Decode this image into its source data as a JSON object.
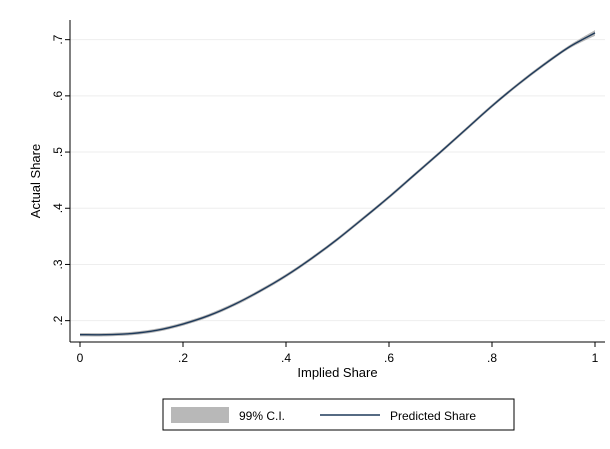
{
  "chart_data": {
    "type": "line",
    "title": "",
    "xlabel": "Implied Share",
    "ylabel": "Actual Share",
    "xlim": [
      0,
      1
    ],
    "ylim": [
      0.162,
      0.735
    ],
    "x_ticks": [
      0,
      0.2,
      0.4,
      0.6,
      0.8,
      1
    ],
    "x_tick_labels": [
      "0",
      ".2",
      ".4",
      ".6",
      ".8",
      "1"
    ],
    "y_ticks": [
      0.2,
      0.3,
      0.4,
      0.5,
      0.6,
      0.7
    ],
    "y_tick_labels": [
      ".2",
      ".3",
      ".4",
      ".5",
      ".6",
      ".7"
    ],
    "grid": "horizontal",
    "legend_position": "bottom",
    "series": [
      {
        "name": "Predicted Share",
        "role": "line",
        "color": "#1f3a5a",
        "x": [
          0,
          0.05,
          0.1,
          0.15,
          0.2,
          0.25,
          0.3,
          0.35,
          0.4,
          0.45,
          0.5,
          0.55,
          0.6,
          0.65,
          0.7,
          0.75,
          0.8,
          0.85,
          0.9,
          0.95,
          1.0
        ],
        "y": [
          0.175,
          0.175,
          0.177,
          0.183,
          0.194,
          0.209,
          0.229,
          0.253,
          0.28,
          0.311,
          0.345,
          0.382,
          0.42,
          0.46,
          0.5,
          0.541,
          0.582,
          0.62,
          0.655,
          0.687,
          0.712
        ]
      },
      {
        "name": "99% C.I.",
        "role": "band",
        "color": "#b8b8b8",
        "x": [
          0,
          0.05,
          0.1,
          0.15,
          0.2,
          0.25,
          0.3,
          0.35,
          0.4,
          0.45,
          0.5,
          0.55,
          0.6,
          0.65,
          0.7,
          0.75,
          0.8,
          0.85,
          0.9,
          0.95,
          1.0
        ],
        "lower": [
          0.172,
          0.172,
          0.174,
          0.18,
          0.191,
          0.206,
          0.226,
          0.25,
          0.277,
          0.308,
          0.342,
          0.379,
          0.417,
          0.457,
          0.497,
          0.538,
          0.579,
          0.617,
          0.652,
          0.684,
          0.707
        ],
        "upper": [
          0.178,
          0.178,
          0.18,
          0.186,
          0.197,
          0.212,
          0.232,
          0.256,
          0.283,
          0.314,
          0.348,
          0.385,
          0.423,
          0.463,
          0.503,
          0.544,
          0.585,
          0.623,
          0.658,
          0.69,
          0.717
        ]
      }
    ]
  }
}
